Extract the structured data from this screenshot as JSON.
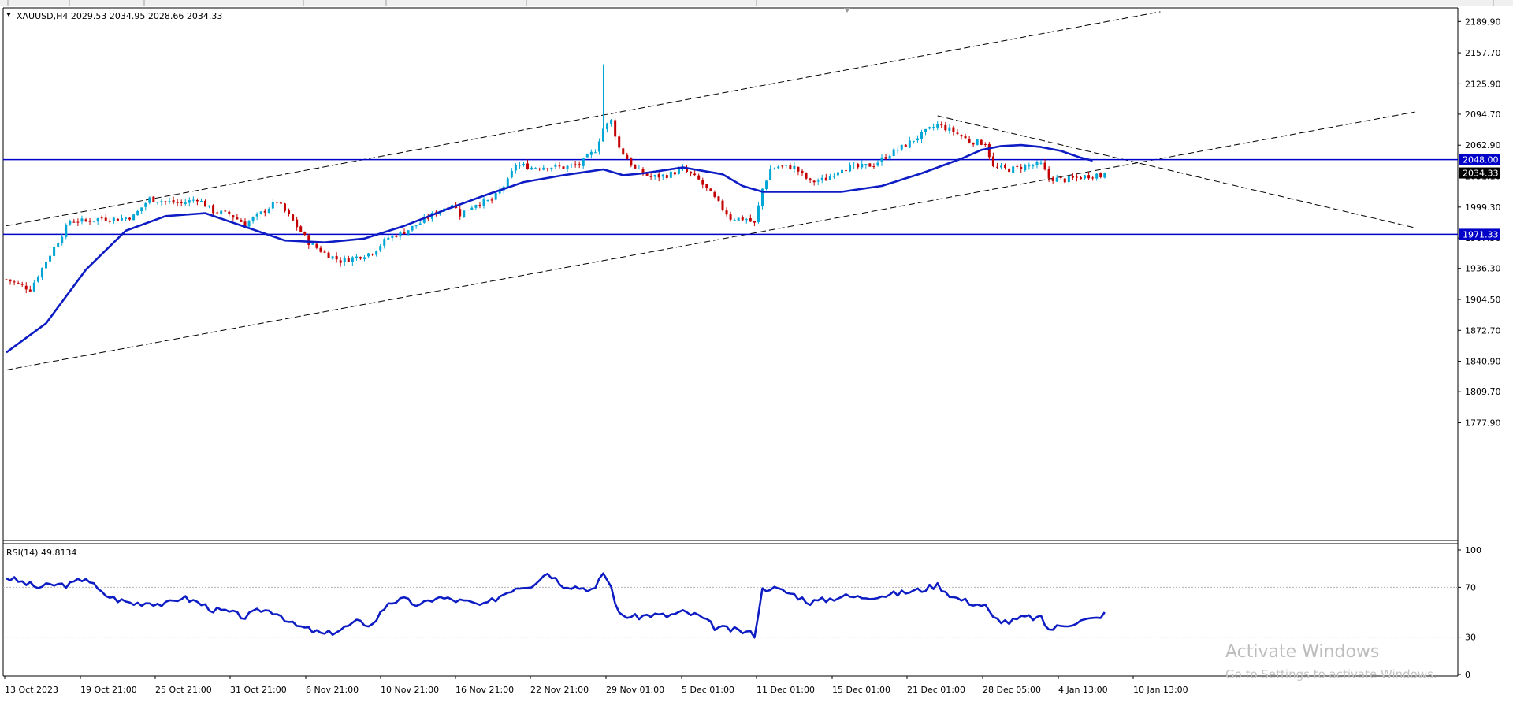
{
  "window": {
    "symbol_info": "XAUUSD,H4  2029.53 2034.95 2028.66 2034.33",
    "watermark_title": "Activate Windows",
    "watermark_sub": "Go to Settings to activate Windows."
  },
  "colors": {
    "ma": "#0e1cc4",
    "rsi": "#0e1cc4",
    "level": "#0000c8",
    "bull": "#00a6d6",
    "bear": "#c40000",
    "grid": "#c8c8c8"
  },
  "chart_data": [
    {
      "type": "candlestick",
      "symbol": "XAUUSD",
      "timeframe": "H4",
      "current_ohlc": {
        "open": 2029.53,
        "high": 2034.95,
        "low": 2028.66,
        "close": 2034.33
      },
      "ylim": [
        1760,
        2200
      ],
      "y_ticks": [
        "2189.90",
        "2157.70",
        "2125.90",
        "2094.70",
        "2062.90",
        "2031.10",
        "1999.30",
        "1967.50",
        "1936.30",
        "1904.50",
        "1872.70",
        "1840.90",
        "1809.70",
        "1777.90"
      ],
      "x_ticks": [
        "13 Oct 2023",
        "19 Oct 21:00",
        "25 Oct 21:00",
        "31 Oct 21:00",
        "6 Nov 21:00",
        "10 Nov 21:00",
        "16 Nov 21:00",
        "22 Nov 21:00",
        "29 Nov 01:00",
        "5 Dec 01:00",
        "11 Dec 01:00",
        "15 Dec 01:00",
        "21 Dec 01:00",
        "28 Dec 05:00",
        "4 Jan 13:00",
        "10 Jan 13:00"
      ],
      "horizontal_levels": [
        {
          "value": 2048.0,
          "label": "2048.00"
        },
        {
          "value": 1971.33,
          "label": "1971.33"
        }
      ],
      "current_price": {
        "value": 2034.33,
        "label": "2034.33"
      },
      "close_path": [
        [
          0,
          1925
        ],
        [
          6,
          1915
        ],
        [
          12,
          1958
        ],
        [
          16,
          1985
        ],
        [
          20,
          1985
        ],
        [
          24,
          1988
        ],
        [
          28,
          1987
        ],
        [
          32,
          1990
        ],
        [
          36,
          2008
        ],
        [
          40,
          2005
        ],
        [
          44,
          2003
        ],
        [
          48,
          2008
        ],
        [
          52,
          1995
        ],
        [
          56,
          1992
        ],
        [
          60,
          1982
        ],
        [
          64,
          1993
        ],
        [
          68,
          2005
        ],
        [
          72,
          1985
        ],
        [
          76,
          1963
        ],
        [
          80,
          1952
        ],
        [
          84,
          1944
        ],
        [
          88,
          1948
        ],
        [
          92,
          1953
        ],
        [
          96,
          1968
        ],
        [
          100,
          1974
        ],
        [
          104,
          1983
        ],
        [
          108,
          1994
        ],
        [
          112,
          2003
        ],
        [
          114,
          1992
        ],
        [
          118,
          2003
        ],
        [
          122,
          2006
        ],
        [
          126,
          2026
        ],
        [
          128,
          2043
        ],
        [
          132,
          2040
        ],
        [
          136,
          2041
        ],
        [
          140,
          2040
        ],
        [
          144,
          2043
        ],
        [
          148,
          2058
        ],
        [
          150,
          2080
        ],
        [
          152,
          2088
        ],
        [
          154,
          2060
        ],
        [
          158,
          2038
        ],
        [
          162,
          2030
        ],
        [
          166,
          2032
        ],
        [
          170,
          2038
        ],
        [
          174,
          2027
        ],
        [
          178,
          2008
        ],
        [
          182,
          1988
        ],
        [
          186,
          1987
        ],
        [
          188,
          1982
        ],
        [
          190,
          2018
        ],
        [
          192,
          2038
        ],
        [
          194,
          2041
        ],
        [
          198,
          2040
        ],
        [
          202,
          2025
        ],
        [
          206,
          2028
        ],
        [
          210,
          2040
        ],
        [
          214,
          2040
        ],
        [
          218,
          2043
        ],
        [
          222,
          2054
        ],
        [
          226,
          2063
        ],
        [
          230,
          2074
        ],
        [
          234,
          2084
        ],
        [
          238,
          2077
        ],
        [
          242,
          2067
        ],
        [
          246,
          2065
        ],
        [
          248,
          2040
        ],
        [
          252,
          2038
        ],
        [
          256,
          2041
        ],
        [
          260,
          2043
        ],
        [
          262,
          2029
        ],
        [
          266,
          2027
        ],
        [
          270,
          2030
        ],
        [
          274,
          2033
        ],
        [
          276,
          2029
        ]
      ],
      "moving_average": [
        [
          0,
          1850
        ],
        [
          10,
          1880
        ],
        [
          20,
          1935
        ],
        [
          30,
          1975
        ],
        [
          40,
          1990
        ],
        [
          50,
          1993
        ],
        [
          60,
          1979
        ],
        [
          70,
          1965
        ],
        [
          80,
          1963
        ],
        [
          90,
          1967
        ],
        [
          100,
          1980
        ],
        [
          110,
          1996
        ],
        [
          120,
          2011
        ],
        [
          130,
          2025
        ],
        [
          140,
          2032
        ],
        [
          145,
          2035
        ],
        [
          150,
          2038
        ],
        [
          155,
          2032
        ],
        [
          160,
          2034
        ],
        [
          165,
          2037
        ],
        [
          170,
          2040
        ],
        [
          180,
          2033
        ],
        [
          185,
          2021
        ],
        [
          190,
          2015
        ],
        [
          200,
          2015
        ],
        [
          210,
          2015
        ],
        [
          220,
          2021
        ],
        [
          230,
          2034
        ],
        [
          240,
          2049
        ],
        [
          245,
          2058
        ],
        [
          250,
          2062
        ],
        [
          255,
          2063
        ],
        [
          260,
          2061
        ],
        [
          265,
          2057
        ],
        [
          270,
          2050
        ],
        [
          273,
          2047
        ]
      ],
      "trend_lines": [
        {
          "name": "channel-upper",
          "style": "dashed",
          "points": [
            [
              0,
              1980
            ],
            [
              290,
              2200
            ]
          ]
        },
        {
          "name": "channel-lower",
          "style": "dashed",
          "points": [
            [
              0,
              1832
            ],
            [
              354,
              2097
            ]
          ]
        },
        {
          "name": "descending",
          "style": "dashed",
          "points": [
            [
              234,
              2093
            ],
            [
              354,
              1978
            ]
          ]
        }
      ]
    },
    {
      "type": "line",
      "title": "RSI(14) 49.8134",
      "indicator": "RSI(14)",
      "value": 49.8134,
      "ylim": [
        0,
        100
      ],
      "y_ticks": [
        "100",
        "70",
        "30",
        "0"
      ],
      "levels": [
        70,
        30
      ],
      "series": [
        {
          "values": [
            [
              0,
              78
            ],
            [
              4,
              74
            ],
            [
              8,
              70
            ],
            [
              12,
              72
            ],
            [
              16,
              72
            ],
            [
              20,
              78
            ],
            [
              24,
              65
            ],
            [
              28,
              60
            ],
            [
              32,
              57
            ],
            [
              36,
              58
            ],
            [
              40,
              56
            ],
            [
              44,
              62
            ],
            [
              48,
              58
            ],
            [
              52,
              52
            ],
            [
              56,
              50
            ],
            [
              60,
              46
            ],
            [
              64,
              52
            ],
            [
              68,
              50
            ],
            [
              72,
              40
            ],
            [
              76,
              36
            ],
            [
              80,
              32
            ],
            [
              84,
              36
            ],
            [
              88,
              42
            ],
            [
              92,
              40
            ],
            [
              96,
              58
            ],
            [
              100,
              60
            ],
            [
              104,
              55
            ],
            [
              108,
              62
            ],
            [
              112,
              60
            ],
            [
              116,
              58
            ],
            [
              120,
              55
            ],
            [
              124,
              63
            ],
            [
              128,
              70
            ],
            [
              132,
              72
            ],
            [
              136,
              82
            ],
            [
              140,
              72
            ],
            [
              144,
              70
            ],
            [
              148,
              68
            ],
            [
              150,
              82
            ],
            [
              152,
              70
            ],
            [
              154,
              48
            ],
            [
              158,
              46
            ],
            [
              162,
              48
            ],
            [
              166,
              47
            ],
            [
              170,
              50
            ],
            [
              174,
              47
            ],
            [
              178,
              38
            ],
            [
              182,
              36
            ],
            [
              186,
              34
            ],
            [
              188,
              32
            ],
            [
              190,
              68
            ],
            [
              192,
              70
            ],
            [
              194,
              68
            ],
            [
              198,
              64
            ],
            [
              202,
              58
            ],
            [
              206,
              60
            ],
            [
              210,
              63
            ],
            [
              214,
              62
            ],
            [
              218,
              63
            ],
            [
              222,
              64
            ],
            [
              226,
              66
            ],
            [
              230,
              68
            ],
            [
              234,
              72
            ],
            [
              238,
              62
            ],
            [
              242,
              58
            ],
            [
              246,
              55
            ],
            [
              248,
              45
            ],
            [
              252,
              42
            ],
            [
              256,
              46
            ],
            [
              260,
              45
            ],
            [
              262,
              36
            ],
            [
              266,
              40
            ],
            [
              270,
              43
            ],
            [
              274,
              45
            ],
            [
              276,
              50
            ]
          ]
        }
      ]
    }
  ]
}
